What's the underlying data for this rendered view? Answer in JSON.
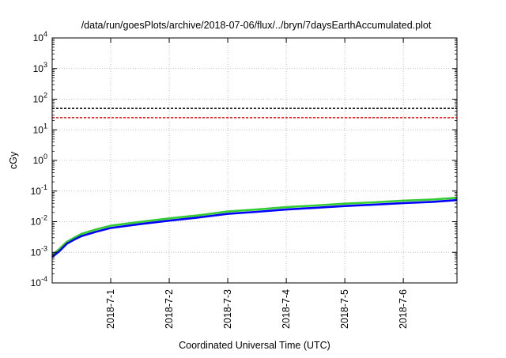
{
  "chart_data": {
    "type": "line",
    "title": "/data/run/goesPlots/archive/2018-07-06/flux/../bryn/7daysEarthAccumulated.plot",
    "xlabel": "Coordinated Universal Time (UTC)",
    "ylabel": "cGy",
    "yscale": "log",
    "ylim": [
      0.0001,
      10000
    ],
    "xlim": [
      "2018-06-30 00:00",
      "2018-07-06 22:00"
    ],
    "x_ticks": [
      "2018-7-1",
      "2018-7-2",
      "2018-7-3",
      "2018-7-4",
      "2018-7-5",
      "2018-7-6"
    ],
    "x_tick_dates": [
      "2018-07-01",
      "2018-07-02",
      "2018-07-03",
      "2018-07-04",
      "2018-07-05",
      "2018-07-06"
    ],
    "y_ticks": [
      {
        "value": 0.0001,
        "exp": "-4"
      },
      {
        "value": 0.001,
        "exp": "-3"
      },
      {
        "value": 0.01,
        "exp": "-2"
      },
      {
        "value": 0.1,
        "exp": "-1"
      },
      {
        "value": 1,
        "exp": "0"
      },
      {
        "value": 10,
        "exp": "1"
      },
      {
        "value": 100,
        "exp": "2"
      },
      {
        "value": 1000,
        "exp": "3"
      },
      {
        "value": 10000,
        "exp": "4"
      }
    ],
    "y_tick_base": "10",
    "grid": true,
    "legend": "none",
    "reference_lines": [
      {
        "value": 50,
        "color": "#000000",
        "style": "dashed"
      },
      {
        "value": 25,
        "color": "#ff0000",
        "style": "dashed"
      }
    ],
    "series": [
      {
        "color": "#33cc33",
        "x": [
          "2018-06-30 00:00",
          "2018-06-30 03:00",
          "2018-06-30 06:00",
          "2018-06-30 09:00",
          "2018-06-30 12:00",
          "2018-06-30 18:00",
          "2018-07-01 00:00",
          "2018-07-01 12:00",
          "2018-07-02 00:00",
          "2018-07-02 12:00",
          "2018-07-03 00:00",
          "2018-07-03 12:00",
          "2018-07-04 00:00",
          "2018-07-04 12:00",
          "2018-07-05 00:00",
          "2018-07-05 12:00",
          "2018-07-06 00:00",
          "2018-07-06 12:00",
          "2018-07-06 22:00"
        ],
        "y": [
          0.0008,
          0.0013,
          0.0022,
          0.003,
          0.004,
          0.0056,
          0.0074,
          0.0098,
          0.0128,
          0.0162,
          0.0215,
          0.025,
          0.0298,
          0.0338,
          0.0388,
          0.043,
          0.0485,
          0.053,
          0.06
        ]
      },
      {
        "color": "#0000ff",
        "x": [
          "2018-06-30 00:00",
          "2018-06-30 03:00",
          "2018-06-30 06:00",
          "2018-06-30 09:00",
          "2018-06-30 12:00",
          "2018-06-30 18:00",
          "2018-07-01 00:00",
          "2018-07-01 12:00",
          "2018-07-02 00:00",
          "2018-07-02 12:00",
          "2018-07-03 00:00",
          "2018-07-03 12:00",
          "2018-07-04 00:00",
          "2018-07-04 12:00",
          "2018-07-05 00:00",
          "2018-07-05 12:00",
          "2018-07-06 00:00",
          "2018-07-06 12:00",
          "2018-07-06 22:00"
        ],
        "y": [
          0.0007,
          0.0011,
          0.0019,
          0.0026,
          0.0034,
          0.0047,
          0.0062,
          0.0083,
          0.0108,
          0.0137,
          0.018,
          0.021,
          0.025,
          0.0285,
          0.0325,
          0.036,
          0.0405,
          0.0445,
          0.0505
        ]
      }
    ]
  }
}
